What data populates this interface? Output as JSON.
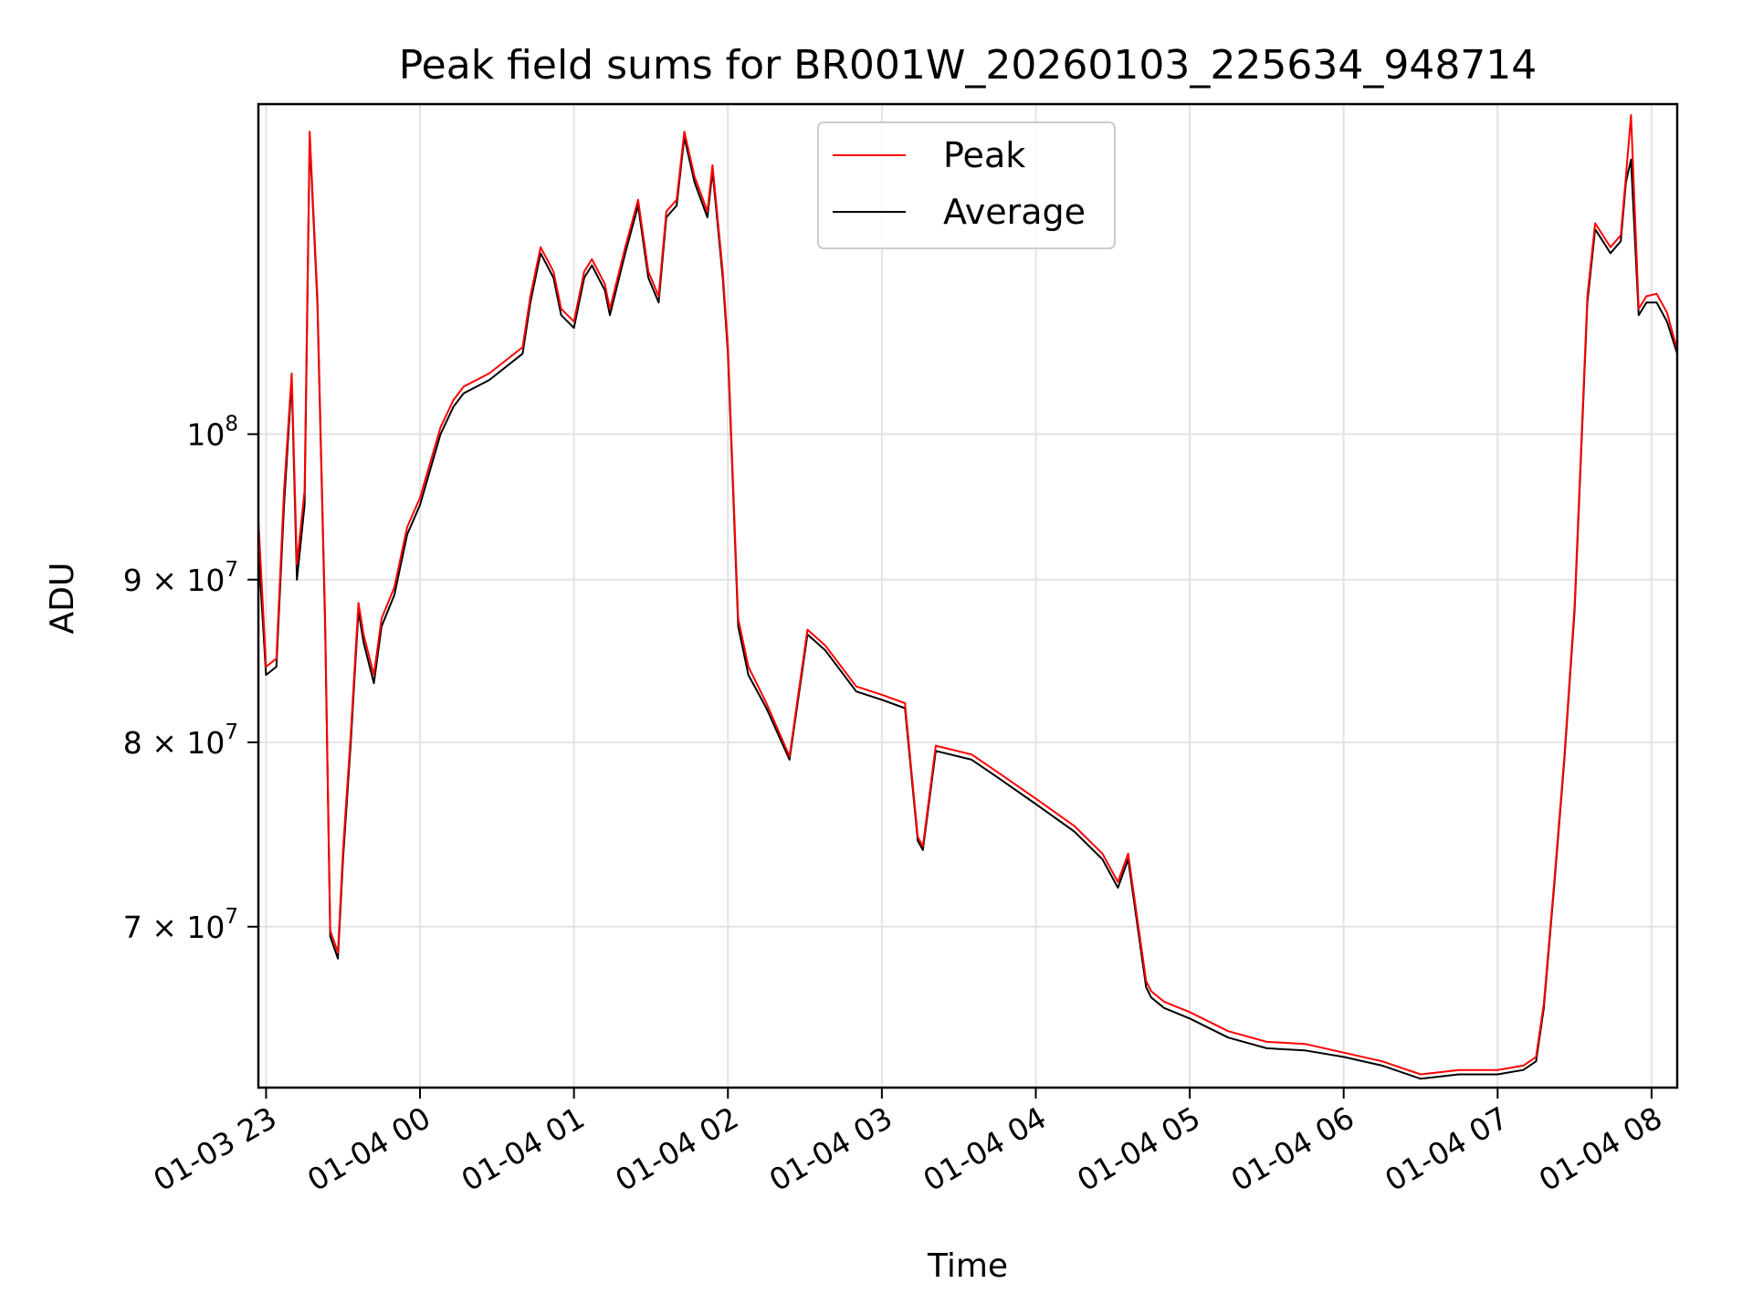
{
  "chart_data": {
    "type": "line",
    "title": "Peak field sums for BR001W_20260103_225634_948714",
    "xlabel": "Time",
    "ylabel": "ADU",
    "yscale": "log",
    "xlim": [
      "2026-01-03 22:57",
      "2026-01-04 08:10"
    ],
    "ylim": [
      62300000,
      127000000
    ],
    "grid": true,
    "legend_position": "upper-center",
    "x_ticks": [
      {
        "t": "2026-01-03 23:00",
        "label": "01-03 23"
      },
      {
        "t": "2026-01-04 00:00",
        "label": "01-04 00"
      },
      {
        "t": "2026-01-04 01:00",
        "label": "01-04 01"
      },
      {
        "t": "2026-01-04 02:00",
        "label": "01-04 02"
      },
      {
        "t": "2026-01-04 03:00",
        "label": "01-04 03"
      },
      {
        "t": "2026-01-04 04:00",
        "label": "01-04 04"
      },
      {
        "t": "2026-01-04 05:00",
        "label": "01-04 05"
      },
      {
        "t": "2026-01-04 06:00",
        "label": "01-04 06"
      },
      {
        "t": "2026-01-04 07:00",
        "label": "01-04 07"
      },
      {
        "t": "2026-01-04 08:00",
        "label": "01-04 08"
      }
    ],
    "y_ticks": [
      {
        "value": 70000000,
        "mantissa": "7",
        "exponent": "7"
      },
      {
        "value": 80000000,
        "mantissa": "8",
        "exponent": "7"
      },
      {
        "value": 90000000,
        "mantissa": "9",
        "exponent": "7"
      },
      {
        "value": 100000000,
        "mantissa": "",
        "exponent": "8"
      }
    ],
    "x": [
      "2026-01-03 22:57",
      "2026-01-03 23:00",
      "2026-01-03 23:04",
      "2026-01-03 23:07",
      "2026-01-03 23:10",
      "2026-01-03 23:12",
      "2026-01-03 23:15",
      "2026-01-03 23:17",
      "2026-01-03 23:20",
      "2026-01-03 23:23",
      "2026-01-03 23:25",
      "2026-01-03 23:28",
      "2026-01-03 23:30",
      "2026-01-03 23:33",
      "2026-01-03 23:36",
      "2026-01-03 23:38",
      "2026-01-03 23:42",
      "2026-01-03 23:45",
      "2026-01-03 23:50",
      "2026-01-03 23:55",
      "2026-01-04 00:00",
      "2026-01-04 00:08",
      "2026-01-04 00:13",
      "2026-01-04 00:17",
      "2026-01-04 00:27",
      "2026-01-04 00:40",
      "2026-01-04 00:43",
      "2026-01-04 00:47",
      "2026-01-04 00:52",
      "2026-01-04 00:55",
      "2026-01-04 01:00",
      "2026-01-04 01:04",
      "2026-01-04 01:07",
      "2026-01-04 01:12",
      "2026-01-04 01:14",
      "2026-01-04 01:20",
      "2026-01-04 01:25",
      "2026-01-04 01:29",
      "2026-01-04 01:33",
      "2026-01-04 01:36",
      "2026-01-04 01:40",
      "2026-01-04 01:43",
      "2026-01-04 01:47",
      "2026-01-04 01:52",
      "2026-01-04 01:54",
      "2026-01-04 01:58",
      "2026-01-04 02:00",
      "2026-01-04 02:04",
      "2026-01-04 02:08",
      "2026-01-04 02:15",
      "2026-01-04 02:24",
      "2026-01-04 02:31",
      "2026-01-04 02:38",
      "2026-01-04 02:50",
      "2026-01-04 03:00",
      "2026-01-04 03:09",
      "2026-01-04 03:14",
      "2026-01-04 03:16",
      "2026-01-04 03:21",
      "2026-01-04 03:35",
      "2026-01-04 03:45",
      "2026-01-04 04:00",
      "2026-01-04 04:15",
      "2026-01-04 04:26",
      "2026-01-04 04:32",
      "2026-01-04 04:36",
      "2026-01-04 04:43",
      "2026-01-04 04:45",
      "2026-01-04 04:50",
      "2026-01-04 05:00",
      "2026-01-04 05:15",
      "2026-01-04 05:30",
      "2026-01-04 05:45",
      "2026-01-04 06:00",
      "2026-01-04 06:15",
      "2026-01-04 06:30",
      "2026-01-04 06:45",
      "2026-01-04 07:00",
      "2026-01-04 07:10",
      "2026-01-04 07:15",
      "2026-01-04 07:18",
      "2026-01-04 07:22",
      "2026-01-04 07:26",
      "2026-01-04 07:30",
      "2026-01-04 07:35",
      "2026-01-04 07:38",
      "2026-01-04 07:41",
      "2026-01-04 07:44",
      "2026-01-04 07:48",
      "2026-01-04 07:50",
      "2026-01-04 07:52",
      "2026-01-04 07:55",
      "2026-01-04 07:58",
      "2026-01-04 08:02",
      "2026-01-04 08:06",
      "2026-01-04 08:10"
    ],
    "series": [
      {
        "name": "Average",
        "color": "#000000",
        "values": [
          92000000,
          84000000,
          84500000,
          95000000,
          104000000,
          90000000,
          95000000,
          124000000,
          110000000,
          87000000,
          69500000,
          68400000,
          73500000,
          80000000,
          88000000,
          86000000,
          83500000,
          87000000,
          89000000,
          93000000,
          95000000,
          100000000,
          102000000,
          103000000,
          104000000,
          106000000,
          110000000,
          114000000,
          112000000,
          109000000,
          108000000,
          112000000,
          113000000,
          111000000,
          109000000,
          114000000,
          118000000,
          112000000,
          110000000,
          117000000,
          118000000,
          124000000,
          120000000,
          117000000,
          121000000,
          112000000,
          106000000,
          87000000,
          84000000,
          82000000,
          79000000,
          86500000,
          85500000,
          83000000,
          82500000,
          82000000,
          74500000,
          74000000,
          79500000,
          79000000,
          78000000,
          76500000,
          75000000,
          73500000,
          72000000,
          73500000,
          67000000,
          66500000,
          66000000,
          65500000,
          64600000,
          64100000,
          64000000,
          63700000,
          63300000,
          62700000,
          62900000,
          62900000,
          63100000,
          63500000,
          66000000,
          72000000,
          79000000,
          88000000,
          110000000,
          116000000,
          115000000,
          114000000,
          115000000,
          120000000,
          122000000,
          109000000,
          110000000,
          110000000,
          108500000,
          106000000
        ]
      },
      {
        "name": "Peak",
        "color": "#ff0000",
        "values": [
          94000000,
          84500000,
          85000000,
          96000000,
          104500000,
          91000000,
          96000000,
          124500000,
          110500000,
          87500000,
          69800000,
          68700000,
          74000000,
          80500000,
          88500000,
          86500000,
          84000000,
          87500000,
          89500000,
          93500000,
          95500000,
          100500000,
          102500000,
          103500000,
          104500000,
          106500000,
          110500000,
          114500000,
          112500000,
          109500000,
          108500000,
          112500000,
          113500000,
          111500000,
          109500000,
          114500000,
          118500000,
          112500000,
          110500000,
          117500000,
          118500000,
          124500000,
          120500000,
          117500000,
          121500000,
          112500000,
          106500000,
          87500000,
          84500000,
          82300000,
          79200000,
          86800000,
          85800000,
          83300000,
          82800000,
          82300000,
          74700000,
          74200000,
          79800000,
          79300000,
          78300000,
          76800000,
          75300000,
          73800000,
          72300000,
          73800000,
          67300000,
          66800000,
          66300000,
          65800000,
          64900000,
          64400000,
          64300000,
          63900000,
          63500000,
          62900000,
          63100000,
          63100000,
          63300000,
          63700000,
          66200000,
          72200000,
          79200000,
          88300000,
          110500000,
          116500000,
          115500000,
          114500000,
          115500000,
          120500000,
          126000000,
          109500000,
          110500000,
          110700000,
          109200000,
          106300000
        ]
      }
    ]
  }
}
